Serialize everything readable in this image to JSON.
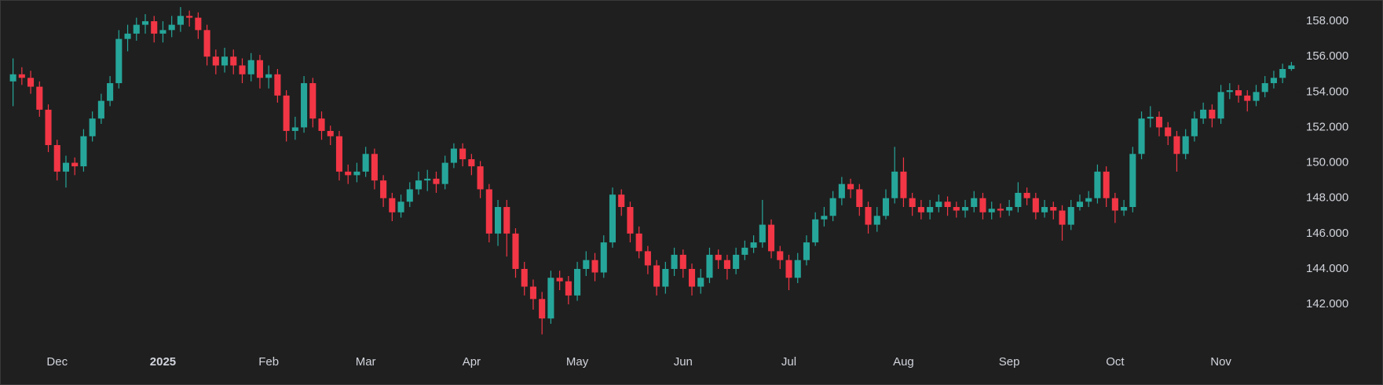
{
  "chart_data": {
    "type": "candlestick",
    "categories": [
      null,
      null,
      null,
      null,
      null,
      "Dec",
      null,
      null,
      null,
      null,
      null,
      null,
      null,
      null,
      null,
      null,
      null,
      "2025",
      null,
      null,
      null,
      null,
      null,
      null,
      null,
      null,
      null,
      null,
      null,
      "Feb",
      null,
      null,
      null,
      null,
      null,
      null,
      null,
      null,
      null,
      null,
      "Mar",
      null,
      null,
      null,
      null,
      null,
      null,
      null,
      null,
      null,
      null,
      null,
      "Apr",
      null,
      null,
      null,
      null,
      null,
      null,
      null,
      null,
      null,
      null,
      null,
      "May",
      null,
      null,
      null,
      null,
      null,
      null,
      null,
      null,
      null,
      null,
      null,
      "Jun",
      null,
      null,
      null,
      null,
      null,
      null,
      null,
      null,
      null,
      null,
      null,
      "Jul",
      null,
      null,
      null,
      null,
      null,
      null,
      null,
      null,
      null,
      null,
      null,
      null,
      "Aug",
      null,
      null,
      null,
      null,
      null,
      null,
      null,
      null,
      null,
      null,
      null,
      "Sep",
      null,
      null,
      null,
      null,
      null,
      null,
      null,
      null,
      null,
      null,
      null,
      "Oct",
      null,
      null,
      null,
      null,
      null,
      null,
      null,
      null,
      null,
      null,
      null,
      "Nov",
      null,
      null,
      null,
      null,
      null,
      null,
      null,
      null
    ],
    "open": [
      154.6,
      155,
      154.8,
      154.3,
      153,
      151,
      149.5,
      150,
      149.8,
      151.5,
      152.5,
      153.5,
      154.5,
      157,
      157.3,
      157.8,
      158,
      157.3,
      157.5,
      157.8,
      158.3,
      158.2,
      157.5,
      156,
      155.5,
      156,
      155.5,
      155,
      155.8,
      154.8,
      155,
      153.8,
      151.8,
      152,
      154.5,
      152.5,
      151.8,
      151.5,
      149.5,
      149.3,
      149.5,
      150.5,
      149,
      148,
      147.2,
      147.8,
      148.5,
      149,
      149.1,
      148.8,
      150,
      150.8,
      150.2,
      149.8,
      148.5,
      146,
      147.5,
      146,
      144,
      143,
      142.3,
      141.2,
      143.5,
      143.3,
      142.5,
      144,
      144.5,
      143.8,
      145.5,
      148.2,
      147.5,
      146,
      145,
      144.2,
      143,
      144,
      144.8,
      144,
      143,
      143.5,
      144.8,
      144.5,
      144,
      144.8,
      145.2,
      145.5,
      146.5,
      145,
      144.5,
      143.5,
      144.5,
      145.5,
      146.8,
      147,
      148,
      148.8,
      148.5,
      147.5,
      146.5,
      147,
      148,
      149.5,
      148,
      147.5,
      147.2,
      147.5,
      147.8,
      147.5,
      147.3,
      147.5,
      148,
      147.2,
      147.4,
      147.3,
      147.5,
      148.3,
      148,
      147.2,
      147.5,
      147.3,
      146.5,
      147.5,
      147.8,
      148,
      149.5,
      148,
      147.3,
      147.5,
      150.5,
      152.5,
      152.6,
      152,
      151.5,
      150.5,
      151.5,
      152.5,
      153,
      152.5,
      154,
      154.1,
      153.8,
      153.5,
      154,
      154.5,
      154.8,
      155.3
    ],
    "high": [
      155.9,
      155.4,
      155.2,
      154.6,
      153.3,
      151.3,
      150.4,
      150.3,
      151.9,
      152.9,
      153.9,
      154.9,
      157.5,
      157.8,
      158.2,
      158.4,
      158.3,
      158,
      158.3,
      158.8,
      158.6,
      158.5,
      157.8,
      156.4,
      156.5,
      156.4,
      155.9,
      156.2,
      156.1,
      155.5,
      155.3,
      154.1,
      152.6,
      154.9,
      154.8,
      152.9,
      152.1,
      151.8,
      149.9,
      150,
      150.9,
      150.8,
      149.3,
      148.3,
      148.2,
      148.9,
      149.5,
      149.6,
      149.5,
      150.4,
      151.1,
      151.1,
      150.5,
      150.1,
      148.8,
      147.9,
      147.9,
      146.3,
      144.4,
      143.4,
      142.7,
      143.9,
      143.9,
      143.6,
      144.4,
      145,
      144.9,
      145.9,
      148.6,
      148.5,
      147.8,
      146.4,
      145.3,
      144.5,
      144.4,
      145.2,
      145.1,
      144.3,
      144,
      145.2,
      145.1,
      144.8,
      145.2,
      145.6,
      145.9,
      147.9,
      146.8,
      145.3,
      144.8,
      144.9,
      145.9,
      147.2,
      147.5,
      148.4,
      149.2,
      149.1,
      148.8,
      147.8,
      147.5,
      148.5,
      150.9,
      150.3,
      148.3,
      147.9,
      147.9,
      148.2,
      148.1,
      147.8,
      147.9,
      148.4,
      148.3,
      147.8,
      147.7,
      147.9,
      148.9,
      148.6,
      148.3,
      147.9,
      147.8,
      147.6,
      147.9,
      148.2,
      148.4,
      149.9,
      149.8,
      148.3,
      147.9,
      150.9,
      152.9,
      153.2,
      152.9,
      152.3,
      151.8,
      151.9,
      152.9,
      153.4,
      153.3,
      154.4,
      154.5,
      154.4,
      154.1,
      154.4,
      154.9,
      155.2,
      155.6,
      155.7
    ],
    "low": [
      153.2,
      154.4,
      153.9,
      152.6,
      150.6,
      149,
      148.6,
      149.3,
      149.5,
      151.2,
      152.2,
      153.2,
      154.2,
      156.3,
      156.9,
      157.3,
      156.8,
      156.8,
      157.1,
      157.4,
      157.7,
      157,
      155.5,
      155,
      155.1,
      155,
      154.5,
      154.6,
      154.2,
      154.2,
      153.4,
      151.2,
      151.3,
      151.7,
      152,
      151.3,
      151,
      149,
      148.8,
      148.9,
      149.2,
      148.5,
      147.5,
      146.7,
      146.9,
      147.5,
      148.2,
      148.4,
      148.3,
      148.5,
      149.7,
      149.8,
      149.3,
      148,
      145.5,
      145.3,
      144.7,
      143.5,
      142.5,
      141.7,
      140.3,
      140.9,
      142.8,
      142,
      142.2,
      143.6,
      143.3,
      143.5,
      145.2,
      147,
      145.5,
      144.6,
      143.7,
      142.5,
      142.6,
      143.6,
      143.5,
      142.5,
      142.6,
      143.2,
      144,
      143.4,
      143.7,
      144.5,
      144.9,
      145.2,
      144.6,
      144,
      142.8,
      143.2,
      144.2,
      145.3,
      146.4,
      146.7,
      147.6,
      148,
      147,
      146,
      146.1,
      146.8,
      147.7,
      147.5,
      147,
      146.8,
      146.8,
      147.2,
      147,
      146.9,
      146.9,
      147.2,
      146.8,
      146.8,
      146.9,
      147,
      147.2,
      147.6,
      146.8,
      146.9,
      146.8,
      145.6,
      146.2,
      147.3,
      147.5,
      147.7,
      147.5,
      146.6,
      147,
      147.2,
      150.2,
      152,
      151.5,
      151,
      149.5,
      150.2,
      151.2,
      152.2,
      152,
      152.2,
      153.6,
      153.4,
      152.9,
      153.2,
      153.7,
      154.2,
      154.5,
      155.2
    ],
    "close": [
      155,
      154.8,
      154.3,
      153,
      151,
      149.5,
      150,
      149.8,
      151.5,
      152.5,
      153.5,
      154.5,
      157,
      157.3,
      157.8,
      158,
      157.3,
      157.5,
      157.8,
      158.3,
      158.2,
      157.5,
      156,
      155.5,
      156,
      155.5,
      155,
      155.8,
      154.8,
      155,
      153.8,
      151.8,
      152,
      154.5,
      152.5,
      151.8,
      151.5,
      149.5,
      149.3,
      149.5,
      150.5,
      149,
      148,
      147.2,
      147.8,
      148.5,
      149,
      149.1,
      148.8,
      150,
      150.8,
      150.2,
      149.8,
      148.5,
      146,
      147.5,
      146,
      144,
      143,
      142.3,
      141.2,
      143.5,
      143.3,
      142.5,
      144,
      144.5,
      143.8,
      145.5,
      148.2,
      147.5,
      146,
      145,
      144.2,
      143,
      144,
      144.8,
      144,
      143,
      143.5,
      144.8,
      144.5,
      144,
      144.8,
      145.2,
      145.5,
      146.5,
      145,
      144.5,
      143.5,
      144.5,
      145.5,
      146.8,
      147,
      148,
      148.8,
      148.5,
      147.5,
      146.5,
      147,
      148,
      149.5,
      148,
      147.5,
      147.2,
      147.5,
      147.8,
      147.5,
      147.3,
      147.5,
      148,
      147.2,
      147.4,
      147.3,
      147.5,
      148.3,
      148,
      147.2,
      147.5,
      147.3,
      146.5,
      147.5,
      147.8,
      148,
      149.5,
      148,
      147.3,
      147.5,
      150.5,
      152.5,
      152.6,
      152,
      151.5,
      150.5,
      151.5,
      152.5,
      153,
      152.5,
      154,
      154.1,
      153.8,
      153.5,
      154,
      154.5,
      154.8,
      155.3,
      155.5
    ],
    "up_color": "#26a69a",
    "down_color": "#f23645",
    "ylim": [
      139.7,
      159.2
    ],
    "yticks": [
      {
        "value": 142,
        "label": "142.000"
      },
      {
        "value": 144,
        "label": "144.000"
      },
      {
        "value": 146,
        "label": "146.000"
      },
      {
        "value": 148,
        "label": "148.000"
      },
      {
        "value": 150,
        "label": "150.000"
      },
      {
        "value": 152,
        "label": "152.000"
      },
      {
        "value": 154,
        "label": "154.000"
      },
      {
        "value": 156,
        "label": "156.000"
      },
      {
        "value": 158,
        "label": "158.000"
      }
    ]
  }
}
